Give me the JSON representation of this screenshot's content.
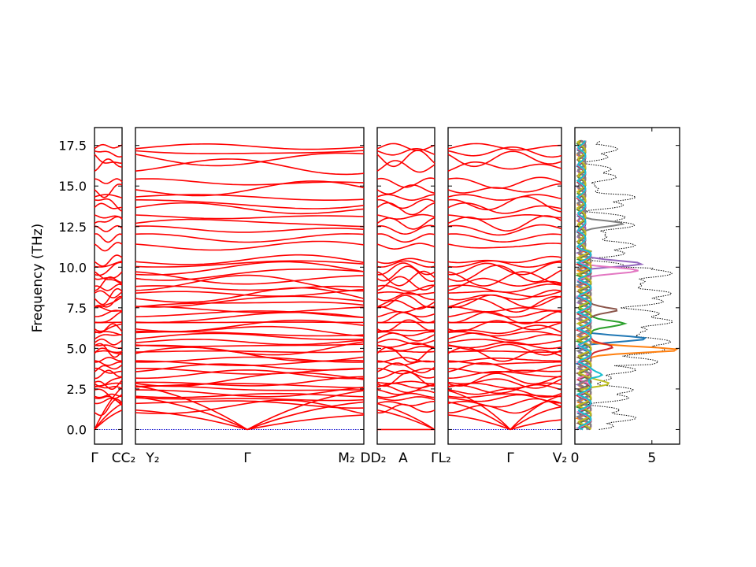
{
  "chart_data": {
    "type": "line",
    "ylabel": "Frequency (THz)",
    "ylim": [
      -0.9,
      18.6
    ],
    "y_ticks": [
      "0.0",
      "2.5",
      "5.0",
      "7.5",
      "10.0",
      "12.5",
      "15.0",
      "17.5"
    ],
    "band_color": "#ff0000",
    "zero_line_color": "#0000cc",
    "dos_xlim": [
      0,
      6.8
    ],
    "dos_x_ticks": [
      "0",
      "5"
    ],
    "segments": [
      {
        "labels": [
          "Γ",
          "C"
        ],
        "kind": "gamma-start",
        "acoustic_end": 2.6
      },
      {
        "labels": [
          "Y₂",
          "Γ",
          "M₂"
        ],
        "kind": "gamma-middle",
        "acoustic_end": 0.9
      },
      {
        "labels": [
          "A"
        ],
        "kind": "gamma-end",
        "acoustic_end": 0.0
      },
      {
        "labels": [
          "Γ"
        ],
        "kind": "gamma-middle",
        "acoustic_end": 0.6
      }
    ],
    "boundary_labels": [
      "CC₂",
      "DD₂",
      "ΓL₂",
      "V₂"
    ],
    "dos_series": [
      {
        "color": "#1f77b4",
        "peak_freq": 5.6,
        "peak": 3.6
      },
      {
        "color": "#ff7f0e",
        "peak_freq": 4.9,
        "peak": 6.3
      },
      {
        "color": "#2ca02c",
        "peak_freq": 6.5,
        "peak": 2.9
      },
      {
        "color": "#d62728",
        "peak_freq": 5.1,
        "peak": 2.2
      },
      {
        "color": "#9467bd",
        "peak_freq": 10.2,
        "peak": 3.4
      },
      {
        "color": "#8c564b",
        "peak_freq": 7.4,
        "peak": 2.3
      },
      {
        "color": "#e377c2",
        "peak_freq": 9.8,
        "peak": 3.1
      },
      {
        "color": "#7f7f7f",
        "peak_freq": 12.7,
        "peak": 2.6
      },
      {
        "color": "#bcbd22",
        "peak_freq": 2.8,
        "peak": 1.3
      },
      {
        "color": "#17becf",
        "peak_freq": 3.3,
        "peak": 1.2
      }
    ],
    "total_dos_color": "#000000"
  }
}
